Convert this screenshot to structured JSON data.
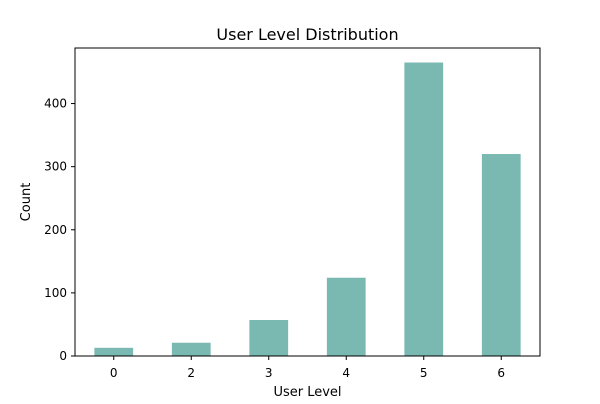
{
  "chart_data": {
    "type": "bar",
    "title": "User Level Distribution",
    "xlabel": "User Level",
    "ylabel": "Count",
    "categories": [
      "0",
      "2",
      "3",
      "4",
      "5",
      "6"
    ],
    "values": [
      13,
      21,
      57,
      124,
      465,
      320
    ],
    "ylim": [
      0,
      488
    ],
    "yticks": [
      0,
      100,
      200,
      300,
      400
    ],
    "bar_color": "#7ab8b2",
    "grid": false,
    "legend": "none"
  }
}
